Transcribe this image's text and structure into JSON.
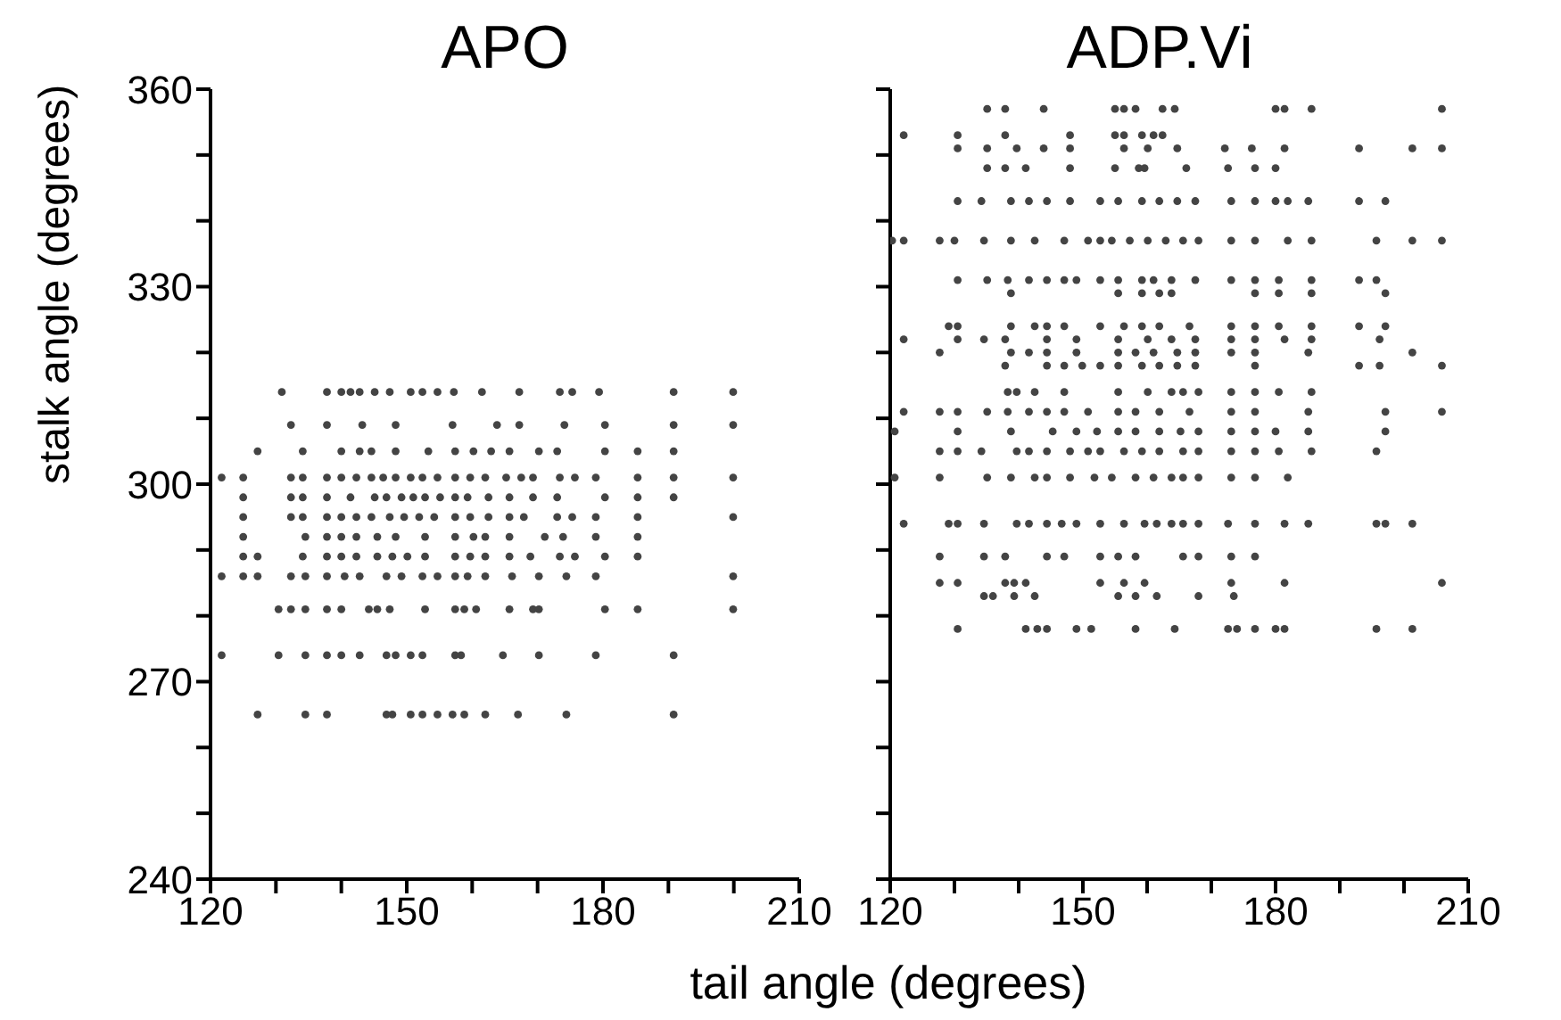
{
  "chart_data": [
    {
      "type": "scatter",
      "title": "APO",
      "xlabel": "tail angle (degrees)",
      "ylabel": "stalk angle (degrees)",
      "marker": "circle",
      "xlim": [
        120,
        210
      ],
      "ylim": [
        240,
        360
      ],
      "xticks": [
        120,
        {
          "value": 130,
          "label": null
        },
        {
          "value": 140,
          "label": null
        },
        150,
        {
          "value": 160,
          "label": null
        },
        {
          "value": 170,
          "label": null
        },
        180,
        {
          "value": 190,
          "label": null
        },
        {
          "value": 200,
          "label": null
        },
        210
      ],
      "yticks": [
        240,
        {
          "value": 250,
          "label": null
        },
        {
          "value": 260,
          "label": null
        },
        270,
        {
          "value": 280,
          "label": null
        },
        {
          "value": 290,
          "label": null
        },
        300,
        {
          "value": 310,
          "label": null
        },
        {
          "value": 320,
          "label": null
        },
        330,
        {
          "value": 340,
          "label": null
        },
        {
          "value": 350,
          "label": null
        },
        360
      ],
      "series": [
        {
          "color": "#444444",
          "x": [
            130.9,
            137.8,
            140,
            141.4,
            142.8,
            145.1,
            147.4,
            150.6,
            152.4,
            154.7,
            157.2,
            161.5,
            167.2,
            173.4,
            175.3,
            179.4,
            190.8,
            199.9
          ],
          "values": [
            314,
            314,
            314,
            314,
            314,
            314,
            314,
            314,
            314,
            314,
            314,
            314,
            314,
            314,
            314,
            314,
            314,
            314
          ]
        },
        {
          "color": "#444444",
          "x": [
            132.3,
            137.8,
            143.2,
            148.3,
            157,
            163.8,
            167.2,
            174.1,
            180.3,
            190.8,
            199.9
          ],
          "values": [
            309,
            309,
            309,
            309,
            309,
            309,
            309,
            309,
            309,
            309,
            309
          ]
        },
        {
          "color": "#444444",
          "x": [
            127.2,
            134.1,
            140,
            142.8,
            144.6,
            148.3,
            153.3,
            157.4,
            160.2,
            162.9,
            165.7,
            170.2,
            173,
            180.3,
            185.3,
            190.8
          ],
          "values": [
            305,
            305,
            305,
            305,
            305,
            305,
            305,
            305,
            305,
            305,
            305,
            305,
            305,
            305,
            305,
            305
          ]
        },
        {
          "color": "#444444",
          "x": [
            121.7,
            125,
            132.3,
            134.1,
            137.8,
            140,
            142.3,
            144.6,
            146.4,
            148.3,
            150.6,
            152.4,
            154.7,
            157.4,
            159.7,
            162,
            165.2,
            167.5,
            169.3,
            173.4,
            175.7,
            178.9,
            185.3,
            190.8,
            199.9
          ],
          "values": [
            301,
            301,
            301,
            301,
            301,
            301,
            301,
            301,
            301,
            301,
            301,
            301,
            301,
            301,
            301,
            301,
            301,
            301,
            301,
            301,
            301,
            301,
            301,
            301,
            301
          ]
        },
        {
          "color": "#444444",
          "x": [
            125,
            132.3,
            134.1,
            137.8,
            141.4,
            145.1,
            146.9,
            149.2,
            151,
            152.8,
            155.1,
            157.4,
            159.3,
            162.5,
            165.7,
            169.3,
            173,
            180.3,
            185.3,
            190.8
          ],
          "values": [
            298,
            298,
            298,
            298,
            298,
            298,
            298,
            298,
            298,
            298,
            298,
            298,
            298,
            298,
            298,
            298,
            298,
            298,
            298,
            298
          ]
        },
        {
          "color": "#444444",
          "x": [
            125,
            132.3,
            134.1,
            137.8,
            140,
            142.3,
            144.6,
            147.4,
            149.6,
            151.9,
            154.2,
            157.4,
            159.7,
            162.5,
            165.7,
            167.9,
            173,
            175.3,
            178.9,
            185.3,
            199.9
          ],
          "values": [
            295,
            295,
            295,
            295,
            295,
            295,
            295,
            295,
            295,
            295,
            295,
            295,
            295,
            295,
            295,
            295,
            295,
            295,
            295,
            295,
            295
          ]
        },
        {
          "color": "#444444",
          "x": [
            125,
            134.5,
            137.8,
            140,
            142.3,
            145.5,
            148.3,
            152.8,
            157.4,
            160.2,
            162,
            165.7,
            171.1,
            173.9,
            178.9,
            185.3
          ],
          "values": [
            292,
            292,
            292,
            292,
            292,
            292,
            292,
            292,
            292,
            292,
            292,
            292,
            292,
            292,
            292,
            292
          ]
        },
        {
          "color": "#444444",
          "x": [
            125,
            127.2,
            134.1,
            137.8,
            140,
            142.3,
            145.5,
            147.8,
            150.1,
            152.8,
            157.4,
            159.7,
            162,
            165.7,
            168.9,
            173.4,
            175.7,
            180.3,
            185.3
          ],
          "values": [
            289,
            289,
            289,
            289,
            289,
            289,
            289,
            289,
            289,
            289,
            289,
            289,
            289,
            289,
            289,
            289,
            289,
            289,
            289
          ]
        },
        {
          "color": "#444444",
          "x": [
            121.7,
            125,
            127.2,
            132.3,
            134.5,
            137.8,
            140.5,
            142.8,
            146.9,
            149.2,
            152.4,
            154.7,
            157.4,
            159.3,
            162,
            166.1,
            170.2,
            174.4,
            178.9,
            199.9
          ],
          "values": [
            286,
            286,
            286,
            286,
            286,
            286,
            286,
            286,
            286,
            286,
            286,
            286,
            286,
            286,
            286,
            286,
            286,
            286,
            286,
            286
          ]
        },
        {
          "color": "#444444",
          "x": [
            130.4,
            132.3,
            134.5,
            137.8,
            140,
            144.2,
            145.5,
            147.4,
            152.8,
            157.4,
            158.8,
            160.6,
            165.7,
            169.3,
            170.2,
            180.3,
            185.3,
            199.9
          ],
          "values": [
            281,
            281,
            281,
            281,
            281,
            281,
            281,
            281,
            281,
            281,
            281,
            281,
            281,
            281,
            281,
            281,
            281,
            281
          ]
        },
        {
          "color": "#444444",
          "x": [
            121.7,
            130.4,
            134.5,
            137.8,
            140,
            142.8,
            146.9,
            148.3,
            150.6,
            152.4,
            157.4,
            158.3,
            164.7,
            170.2,
            178.9,
            190.8
          ],
          "values": [
            274,
            274,
            274,
            274,
            274,
            274,
            274,
            274,
            274,
            274,
            274,
            274,
            274,
            274,
            274,
            274
          ]
        },
        {
          "color": "#444444",
          "x": [
            127.2,
            134.5,
            137.8,
            146.9,
            147.8,
            150.6,
            152.4,
            154.7,
            157,
            158.8,
            162,
            167,
            174.4,
            190.8
          ],
          "values": [
            265,
            265,
            265,
            265,
            265,
            265,
            265,
            265,
            265,
            265,
            265,
            265,
            265,
            265
          ]
        }
      ]
    },
    {
      "type": "scatter",
      "title": "ADP.Vi",
      "marker": "circle",
      "tick_labels": "x",
      "xlim": [
        120,
        210
      ],
      "ylim": [
        240,
        360
      ],
      "xticks": [
        120,
        {
          "value": 130,
          "label": null
        },
        {
          "value": 140,
          "label": null
        },
        150,
        {
          "value": 160,
          "label": null
        },
        {
          "value": 170,
          "label": null
        },
        180,
        {
          "value": 190,
          "label": null
        },
        {
          "value": 200,
          "label": null
        },
        210
      ],
      "yticks": [
        240,
        {
          "value": 250,
          "label": null
        },
        {
          "value": 260,
          "label": null
        },
        270,
        {
          "value": 280,
          "label": null
        },
        {
          "value": 290,
          "label": null
        },
        300,
        {
          "value": 310,
          "label": null
        },
        {
          "value": 320,
          "label": null
        },
        330,
        {
          "value": 340,
          "label": null
        },
        {
          "value": 350,
          "label": null
        },
        360
      ],
      "series": [
        {
          "color": "#444444",
          "x": [
            135.1,
            137.9,
            143.9,
            155,
            156.4,
            158.2,
            162.4,
            164.3,
            180,
            181.4,
            185.6,
            205.9
          ],
          "values": [
            357,
            357,
            357,
            357,
            357,
            357,
            357,
            357,
            357,
            357,
            357,
            357
          ]
        },
        {
          "color": "#444444",
          "x": [
            122.1,
            130.5,
            137.9,
            148,
            155,
            156.4,
            159.2,
            161,
            162.4
          ],
          "values": [
            353,
            353,
            353,
            353,
            353,
            353,
            353,
            353,
            353
          ]
        },
        {
          "color": "#444444",
          "x": [
            130.5,
            135.1,
            139.7,
            143.9,
            148,
            156.4,
            160.1,
            164.7,
            172.1,
            176.3,
            181.4,
            193,
            201.3,
            205.9
          ],
          "values": [
            351,
            351,
            351,
            351,
            351,
            351,
            351,
            351,
            351,
            351,
            351,
            351,
            351,
            351
          ]
        },
        {
          "color": "#444444",
          "x": [
            135.1,
            137.9,
            141.1,
            148,
            155,
            158.7,
            159.6,
            166.1,
            172.6,
            176.8,
            180
          ],
          "values": [
            348,
            348,
            348,
            348,
            348,
            348,
            348,
            348,
            348,
            348,
            348
          ]
        },
        {
          "color": "#444444",
          "x": [
            130.5,
            134.2,
            138.8,
            141.6,
            144.4,
            148,
            152.7,
            155.5,
            159.2,
            161.9,
            164.7,
            167.5,
            173.1,
            176.8,
            180,
            181.9,
            185.1,
            193,
            197.1
          ],
          "values": [
            343,
            343,
            343,
            343,
            343,
            343,
            343,
            343,
            343,
            343,
            343,
            343,
            343,
            343,
            343,
            343,
            343,
            343,
            343
          ]
        },
        {
          "color": "#444444",
          "x": [
            120.3,
            122.1,
            127.7,
            130,
            134.6,
            138.8,
            142.5,
            147.1,
            150.8,
            152.7,
            154.5,
            157.3,
            160.1,
            162.9,
            165.6,
            168,
            173.1,
            176.8,
            181.9,
            185.6,
            195.7,
            201.3,
            205.9
          ],
          "values": [
            337,
            337,
            337,
            337,
            337,
            337,
            337,
            337,
            337,
            337,
            337,
            337,
            337,
            337,
            337,
            337,
            337,
            337,
            337,
            337,
            337,
            337,
            337
          ]
        },
        {
          "color": "#444444",
          "x": [
            130.5,
            135.1,
            138.3,
            141.6,
            144.4,
            147.1,
            149,
            152.7,
            155.5,
            159.2,
            161,
            163.8,
            167.5,
            173.1,
            176.8,
            180.5,
            185.6,
            193,
            195.7
          ],
          "values": [
            331,
            331,
            331,
            331,
            331,
            331,
            331,
            331,
            331,
            331,
            331,
            331,
            331,
            331,
            331,
            331,
            331,
            331,
            331
          ]
        },
        {
          "color": "#444444",
          "x": [
            138.8,
            155.5,
            159.2,
            161.9,
            163.8,
            176.8,
            180.5,
            185.6,
            197.1
          ],
          "values": [
            329,
            329,
            329,
            329,
            329,
            329,
            329,
            329,
            329
          ]
        },
        {
          "color": "#444444",
          "x": [
            129.1,
            130.5,
            138.8,
            142.5,
            144.4,
            147.1,
            152.7,
            156.4,
            159.2,
            161.9,
            166.6,
            173.1,
            176.8,
            180.5,
            185.6,
            193,
            197.1
          ],
          "values": [
            324,
            324,
            324,
            324,
            324,
            324,
            324,
            324,
            324,
            324,
            324,
            324,
            324,
            324,
            324,
            324,
            324
          ]
        },
        {
          "color": "#444444",
          "x": [
            122.1,
            130.5,
            134.6,
            137.9,
            144.4,
            149,
            155.5,
            160.1,
            163.8,
            167.5,
            173.1,
            176.8,
            181.4,
            185.6,
            196.2
          ],
          "values": [
            322,
            322,
            322,
            322,
            322,
            322,
            322,
            322,
            322,
            322,
            322,
            322,
            322,
            322,
            322
          ]
        },
        {
          "color": "#444444",
          "x": [
            127.7,
            138.8,
            141.6,
            144.4,
            149,
            155.5,
            158.2,
            161,
            164.7,
            167.5,
            173.1,
            176.8,
            185.1,
            201.3
          ],
          "values": [
            320,
            320,
            320,
            320,
            320,
            320,
            320,
            320,
            320,
            320,
            320,
            320,
            320,
            320
          ]
        },
        {
          "color": "#444444",
          "x": [
            137.9,
            144.4,
            147.1,
            149.9,
            152.7,
            155.5,
            159.2,
            161.9,
            164.7,
            167.5,
            176.8,
            193,
            196.2,
            205.9
          ],
          "values": [
            318,
            318,
            318,
            318,
            318,
            318,
            318,
            318,
            318,
            318,
            318,
            318,
            318,
            318
          ]
        },
        {
          "color": "#444444",
          "x": [
            138.3,
            139.7,
            142.5,
            147.1,
            155.5,
            160.1,
            163.8,
            165.6,
            168,
            173.1,
            176.8,
            180.5,
            185.6
          ],
          "values": [
            314,
            314,
            314,
            314,
            314,
            314,
            314,
            314,
            314,
            314,
            314,
            314,
            314
          ]
        },
        {
          "color": "#444444",
          "x": [
            122.1,
            127.7,
            130.5,
            135.1,
            138.3,
            141.6,
            144.4,
            147.1,
            150.8,
            155.5,
            158.2,
            161.9,
            166.6,
            173.1,
            176.8,
            185.1,
            197.1,
            205.9
          ],
          "values": [
            311,
            311,
            311,
            311,
            311,
            311,
            311,
            311,
            311,
            311,
            311,
            311,
            311,
            311,
            311,
            311,
            311,
            311
          ]
        },
        {
          "color": "#444444",
          "x": [
            120.7,
            130.5,
            138.8,
            145.3,
            149,
            152.2,
            155.5,
            158.2,
            161.9,
            165.2,
            168,
            173.1,
            176.8,
            180,
            185.1,
            197.1
          ],
          "values": [
            308,
            308,
            308,
            308,
            308,
            308,
            308,
            308,
            308,
            308,
            308,
            308,
            308,
            308,
            308,
            308
          ]
        },
        {
          "color": "#444444",
          "x": [
            127.7,
            130.5,
            134.2,
            139.7,
            141.6,
            144.4,
            148,
            150.8,
            152.7,
            156.4,
            159.2,
            161.9,
            165.6,
            168,
            173.1,
            176.8,
            180.5,
            185.6,
            195.7
          ],
          "values": [
            305,
            305,
            305,
            305,
            305,
            305,
            305,
            305,
            305,
            305,
            305,
            305,
            305,
            305,
            305,
            305,
            305,
            305,
            305
          ]
        },
        {
          "color": "#444444",
          "x": [
            120.7,
            127.7,
            135.1,
            138.8,
            142.5,
            144.4,
            148,
            151.8,
            154.5,
            158.2,
            161,
            163.8,
            165.6,
            168,
            173.1,
            176.8,
            181.9
          ],
          "values": [
            301,
            301,
            301,
            301,
            301,
            301,
            301,
            301,
            301,
            301,
            301,
            301,
            301,
            301,
            301,
            301,
            301
          ]
        },
        {
          "color": "#444444",
          "x": [
            122.1,
            129.1,
            130.5,
            134.6,
            139.7,
            141.6,
            144.4,
            146.7,
            149,
            152.7,
            156.4,
            159.6,
            161.5,
            163.8,
            165.6,
            168,
            172.6,
            176.8,
            181.4,
            185.1,
            195.7,
            197.1,
            201.3
          ],
          "values": [
            294,
            294,
            294,
            294,
            294,
            294,
            294,
            294,
            294,
            294,
            294,
            294,
            294,
            294,
            294,
            294,
            294,
            294,
            294,
            294,
            294,
            294,
            294
          ]
        },
        {
          "color": "#444444",
          "x": [
            127.7,
            134.6,
            137.9,
            144.4,
            147.1,
            152.7,
            155.5,
            158.2,
            165.6,
            168,
            173.1,
            176.8
          ],
          "values": [
            289,
            289,
            289,
            289,
            289,
            289,
            289,
            289,
            289,
            289,
            289,
            289
          ]
        },
        {
          "color": "#444444",
          "x": [
            127.7,
            130.5,
            137.9,
            139.3,
            141.1,
            152.7,
            156.4,
            159.6,
            173.1,
            181.4,
            205.9
          ],
          "values": [
            285,
            285,
            285,
            285,
            285,
            285,
            285,
            285,
            285,
            285,
            285
          ]
        },
        {
          "color": "#444444",
          "x": [
            134.6,
            136,
            139.3,
            142.5,
            155.5,
            158.2,
            161.5,
            168,
            173.5
          ],
          "values": [
            283,
            283,
            283,
            283,
            283,
            283,
            283,
            283,
            283
          ]
        },
        {
          "color": "#444444",
          "x": [
            130.5,
            141.1,
            142.9,
            144.4,
            149,
            151.3,
            158.2,
            164.3,
            172.6,
            174,
            176.8,
            180,
            181.4,
            195.7,
            201.3
          ],
          "values": [
            278,
            278,
            278,
            278,
            278,
            278,
            278,
            278,
            278,
            278,
            278,
            278,
            278,
            278,
            278
          ]
        }
      ]
    }
  ]
}
